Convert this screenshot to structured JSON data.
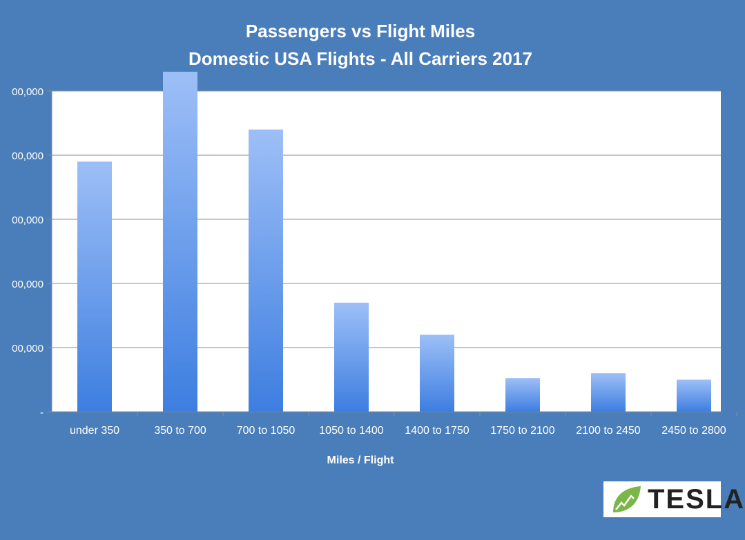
{
  "chart_data": {
    "type": "bar",
    "title": "Passengers vs Flight Miles",
    "subtitle": "Domestic USA Flights - All Carriers 2017",
    "xlabel": "Miles / Flight",
    "ylabel": "",
    "categories": [
      "under 350",
      "350 to 700",
      "700 to 1050",
      "1050 to 1400",
      "1400 to 1750",
      "1750 to 2100",
      "2100 to 2450",
      "2450 to 2800"
    ],
    "values": [
      78000000,
      106000000,
      88000000,
      34000000,
      24000000,
      10500000,
      12000000,
      10000000
    ],
    "ylim": [
      0,
      100000000
    ],
    "yticks": [
      0,
      20000000,
      40000000,
      60000000,
      80000000,
      100000000
    ],
    "ytick_labels": [
      "-",
      "00,000",
      "00,000",
      "00,000",
      "00,000",
      "00,000"
    ],
    "grid": true,
    "legend": "none",
    "colors": {
      "bar_top": "#9dbff7",
      "bar_bottom": "#3d7ee0",
      "plot_bg": "#ffffff",
      "grid": "#8c8c8c",
      "page_bg": "#4a7ebb"
    }
  },
  "logo": {
    "text": "TESLA",
    "icon": "leaf-icon"
  }
}
